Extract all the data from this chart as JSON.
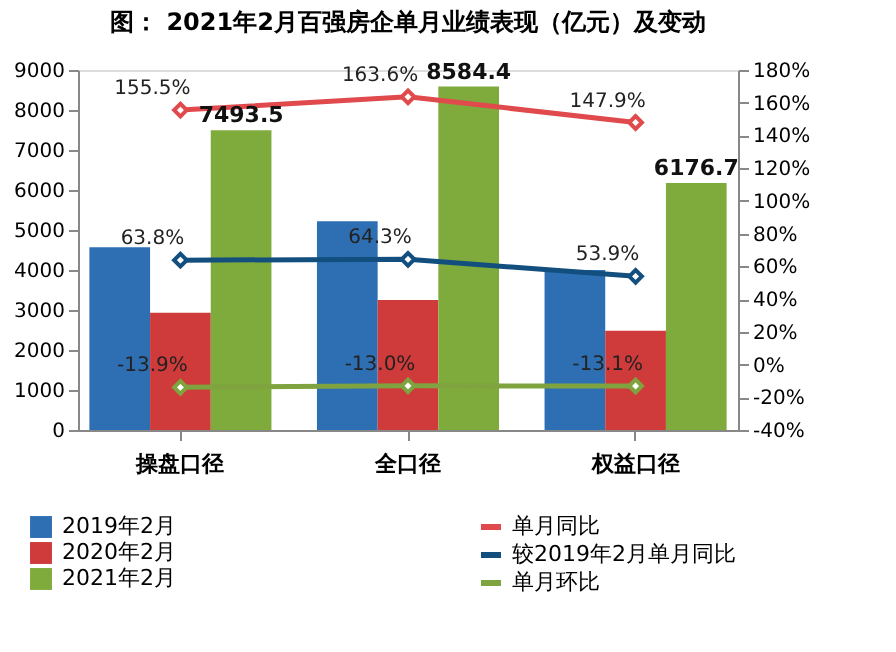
{
  "chart_data": {
    "type": "bar",
    "title": "图：  2021年2月百强房企单月业绩表现（亿元）及变动",
    "categories": [
      "操盘口径",
      "全口径",
      "权益口径"
    ],
    "series": [
      {
        "name": "2019年2月",
        "color": "#2e6fb3",
        "values": [
          4570,
          5220,
          4000
        ]
      },
      {
        "name": "2020年2月",
        "color": "#cf3a3a",
        "values": [
          2930,
          3250,
          2480
        ]
      },
      {
        "name": "2021年2月",
        "color": "#7faa3c",
        "values": [
          7493.5,
          8584.4,
          6176.7
        ],
        "value_labels": [
          "7493.5",
          "8584.4",
          "6176.7"
        ]
      },
      {
        "name": "单月同比",
        "type": "line",
        "axis": "y2",
        "color": "#e04a4c",
        "values": [
          155.5,
          163.6,
          147.9
        ],
        "value_labels": [
          "155.5%",
          "163.6%",
          "147.9%"
        ]
      },
      {
        "name": "较2019年2月单月同比",
        "type": "line",
        "axis": "y2",
        "color": "#124f7e",
        "values": [
          63.8,
          64.3,
          53.9
        ],
        "value_labels": [
          "63.8%",
          "64.3%",
          "53.9%"
        ]
      },
      {
        "name": "单月环比",
        "type": "line",
        "axis": "y2",
        "color": "#7ea33f",
        "values": [
          -13.9,
          -13.0,
          -13.1
        ],
        "value_labels": [
          "-13.9%",
          "-13.0%",
          "-13.1%"
        ]
      }
    ],
    "ylim": [
      0,
      9000
    ],
    "yticks": [
      0,
      1000,
      2000,
      3000,
      4000,
      5000,
      6000,
      7000,
      8000,
      9000
    ],
    "y2lim": [
      -40,
      180
    ],
    "y2ticks": [
      {
        "value": -40,
        "label": "-40%"
      },
      {
        "value": -20,
        "label": "-20%"
      },
      {
        "value": 0,
        "label": "0%"
      },
      {
        "value": 20,
        "label": "20%"
      },
      {
        "value": 40,
        "label": "40%"
      },
      {
        "value": 60,
        "label": "60%"
      },
      {
        "value": 80,
        "label": "80%"
      },
      {
        "value": 100,
        "label": "100%"
      },
      {
        "value": 120,
        "label": "120%"
      },
      {
        "value": 140,
        "label": "140%"
      },
      {
        "value": 160,
        "label": "160%"
      },
      {
        "value": 180,
        "label": "180%"
      }
    ],
    "marker": "diamond",
    "line_style": "solid",
    "legend": "bottom",
    "grid": false
  }
}
